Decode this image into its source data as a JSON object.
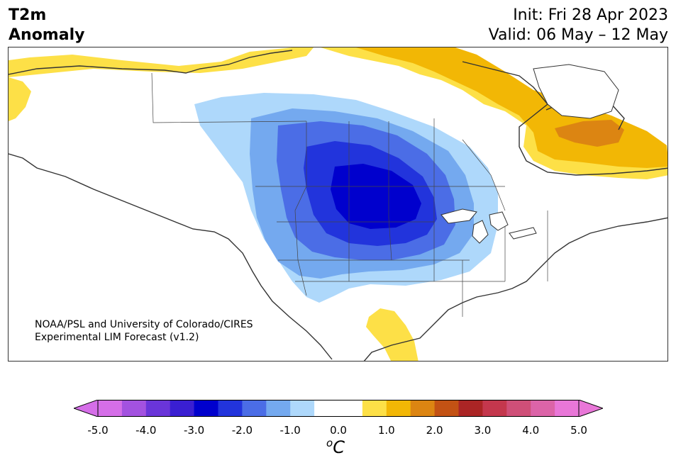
{
  "header": {
    "variable_line1": "T2m",
    "variable_line2": "Anomaly",
    "init": "Init: Fri 28 Apr 2023",
    "valid": "Valid: 06 May – 12 May"
  },
  "credit": {
    "line1": "NOAA/PSL and University of Colorado/CIRES",
    "line2": "Experimental LIM Forecast (v1.2)"
  },
  "colorbar": {
    "unit_base": "C",
    "unit_sup": "o",
    "ticks": [
      "-5.0",
      "-4.0",
      "-3.0",
      "-2.0",
      "-1.0",
      "0.0",
      "1.0",
      "2.0",
      "3.0",
      "4.0",
      "5.0"
    ],
    "colors": [
      "#d56ee8",
      "#a352e0",
      "#6a35d9",
      "#3a1fd2",
      "#0000cd",
      "#2234dc",
      "#4b6de6",
      "#74a9ef",
      "#aed8fb",
      "#ffffff",
      "#ffffff",
      "#fde047",
      "#f2b705",
      "#dc8512",
      "#c35214",
      "#ab2525",
      "#c4374d",
      "#cf4f78",
      "#dc64a8",
      "#e977d8"
    ],
    "extend_min_color": "#d56ee8",
    "extend_max_color": "#e977d8"
  },
  "map": {
    "region": "North America",
    "colors": {
      "neg1": "#aed8fb",
      "neg2": "#74a9ef",
      "neg3": "#4b6de6",
      "neg4": "#2234dc",
      "neg5": "#0000cd",
      "pos1": "#fde047",
      "pos2": "#f2b705",
      "pos3": "#dc8512",
      "coast": "#333333",
      "water": "#ffffff"
    }
  }
}
